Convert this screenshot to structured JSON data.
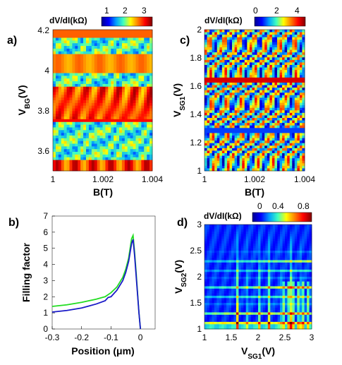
{
  "colors": {
    "colormap": [
      "#00008f",
      "#0000ff",
      "#00a0ff",
      "#40ffbf",
      "#ffff00",
      "#ff8000",
      "#ff0000",
      "#800000"
    ],
    "green_curve": "#22dd22",
    "blue_curve": "#1a1ac8"
  },
  "figure": {
    "panel_a": {
      "letter": "a)"
    },
    "panel_b": {
      "letter": "b)"
    },
    "panel_c": {
      "letter": "c)"
    },
    "panel_d": {
      "letter": "d)"
    }
  },
  "chart_data": [
    {
      "id": "a",
      "type": "heatmap",
      "title": "",
      "colorbar_label": "dV/dI(kΩ)",
      "colorbar_ticks": [
        "1",
        "2",
        "3"
      ],
      "colorbar_range": [
        0.5,
        3.5
      ],
      "xlabel": "B(T)",
      "ylabel": "V_BG(V)",
      "x_range": [
        1.0,
        1.004
      ],
      "y_range": [
        3.5,
        4.2
      ],
      "x_ticks": [
        "1",
        "1.002",
        "1.004"
      ],
      "y_ticks": [
        "3.6",
        "3.8",
        "4",
        "4.2"
      ]
    },
    {
      "id": "b",
      "type": "line",
      "title": "",
      "xlabel": "Position (μm)",
      "ylabel": "Filling factor",
      "xlim": [
        -0.3,
        0.05
      ],
      "ylim": [
        0,
        7
      ],
      "x_ticks": [
        "-0.3",
        "-0.2",
        "-0.1",
        "0"
      ],
      "y_ticks": [
        "0",
        "1",
        "2",
        "3",
        "4",
        "5",
        "6",
        "7"
      ],
      "series": [
        {
          "color": "green",
          "x": [
            -0.3,
            -0.25,
            -0.2,
            -0.15,
            -0.13,
            -0.12,
            -0.1,
            -0.08,
            -0.06,
            -0.05,
            -0.04,
            -0.03,
            -0.025,
            -0.02,
            -0.015,
            -0.01,
            -0.005,
            0.0
          ],
          "y": [
            1.4,
            1.5,
            1.65,
            1.85,
            1.95,
            2.0,
            2.25,
            2.6,
            3.2,
            3.7,
            4.4,
            5.6,
            5.8,
            4.8,
            3.6,
            2.3,
            1.0,
            0.0
          ]
        },
        {
          "color": "blue",
          "x": [
            -0.3,
            -0.25,
            -0.2,
            -0.15,
            -0.12,
            -0.11,
            -0.1,
            -0.08,
            -0.06,
            -0.05,
            -0.04,
            -0.03,
            -0.025,
            -0.02,
            -0.015,
            -0.01,
            -0.005,
            0.0
          ],
          "y": [
            1.05,
            1.15,
            1.3,
            1.55,
            1.75,
            1.95,
            2.0,
            2.4,
            3.0,
            3.5,
            4.2,
            5.3,
            5.55,
            4.6,
            3.4,
            2.2,
            1.0,
            0.0
          ]
        }
      ]
    },
    {
      "id": "c",
      "type": "heatmap",
      "title": "",
      "colorbar_label": "dV/dI(kΩ)",
      "colorbar_ticks": [
        "0",
        "2",
        "4"
      ],
      "colorbar_range": [
        -0.5,
        4.5
      ],
      "xlabel": "B(T)",
      "ylabel": "V_SG1(V)",
      "x_range": [
        1.0,
        1.004
      ],
      "y_range": [
        1.0,
        2.0
      ],
      "x_ticks": [
        "1",
        "1.002",
        "1.004"
      ],
      "y_ticks": [
        "1",
        "1.2",
        "1.4",
        "1.6",
        "1.8",
        "2"
      ]
    },
    {
      "id": "d",
      "type": "heatmap",
      "title": "",
      "colorbar_label": "dV/dI(kΩ)",
      "colorbar_ticks": [
        "0",
        "0.4",
        "0.8"
      ],
      "colorbar_range": [
        -0.05,
        0.85
      ],
      "xlabel": "V_SG1(V)",
      "ylabel": "V_SG2(V)",
      "x_range": [
        1.0,
        3.0
      ],
      "y_range": [
        1.0,
        3.0
      ],
      "x_ticks": [
        "1",
        "1.5",
        "2",
        "2.5",
        "3"
      ],
      "y_ticks": [
        "1",
        "1.5",
        "2",
        "2.5",
        "3"
      ]
    }
  ]
}
